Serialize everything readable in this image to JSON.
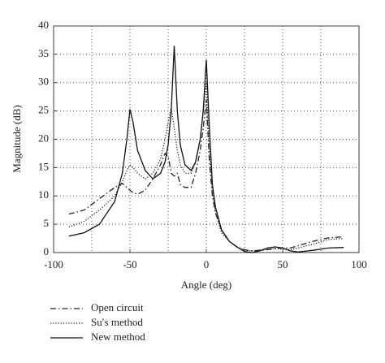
{
  "chart_data": {
    "type": "line",
    "xlabel": "Angle (deg)",
    "ylabel": "Magnitude (dB)",
    "x": [
      -90,
      -80,
      -70,
      -60,
      -55,
      -52,
      -50,
      -48,
      -45,
      -40,
      -35,
      -30,
      -27,
      -25,
      -23,
      -21,
      -19,
      -17,
      -14,
      -10,
      -7,
      -4,
      -2,
      0,
      2,
      4,
      6,
      10,
      15,
      20,
      25,
      30,
      35,
      40,
      45,
      50,
      55,
      60,
      70,
      80,
      90
    ],
    "series": [
      {
        "name": "Open circuit",
        "color": "#222222",
        "dash": "dashdot",
        "values": [
          6.8,
          7.5,
          9.5,
          11.5,
          12.2,
          11.5,
          11,
          10.6,
          10.3,
          11,
          13,
          15.5,
          17.5,
          17,
          14,
          13.5,
          14,
          12,
          11.5,
          11.5,
          14,
          18,
          22,
          27,
          16,
          10,
          7,
          4,
          2,
          1,
          0.5,
          0.3,
          0.4,
          0.5,
          0.7,
          0.8,
          0.8,
          1.2,
          2,
          2.6,
          2.8
        ]
      },
      {
        "name": "Su′s method",
        "color": "#222222",
        "dash": "dotted",
        "values": [
          4.5,
          5.5,
          7.5,
          10,
          12.5,
          14.5,
          15.5,
          15,
          14,
          13,
          14,
          16.5,
          20,
          23,
          25.5,
          22,
          18,
          15.5,
          14,
          14,
          16,
          20,
          25,
          30,
          18,
          11,
          7,
          3.5,
          2,
          1,
          0.4,
          0.3,
          0.4,
          0.6,
          0.7,
          0.6,
          0.5,
          0.8,
          1.5,
          2.3,
          2.5
        ]
      },
      {
        "name": "New method",
        "color": "#111111",
        "dash": "solid",
        "values": [
          2.9,
          3.5,
          5,
          9,
          14,
          20,
          25.3,
          23,
          18,
          14.5,
          13,
          14,
          16,
          19,
          25,
          36.5,
          25,
          19,
          15.5,
          14.5,
          16,
          20,
          25,
          34,
          22,
          12,
          8,
          4,
          2,
          1,
          0.2,
          0,
          0.3,
          0.8,
          1,
          0.8,
          0.3,
          0.1,
          0.4,
          0.8,
          0.9
        ]
      }
    ],
    "xlim": [
      -100,
      100
    ],
    "xticks": [
      -100,
      -50,
      0,
      50,
      100
    ],
    "xminorticks": [
      -75,
      -25,
      25,
      75
    ],
    "ylim": [
      0,
      40
    ],
    "yticks": [
      0,
      5,
      10,
      15,
      20,
      25,
      30,
      35,
      40
    ],
    "grid": true
  }
}
